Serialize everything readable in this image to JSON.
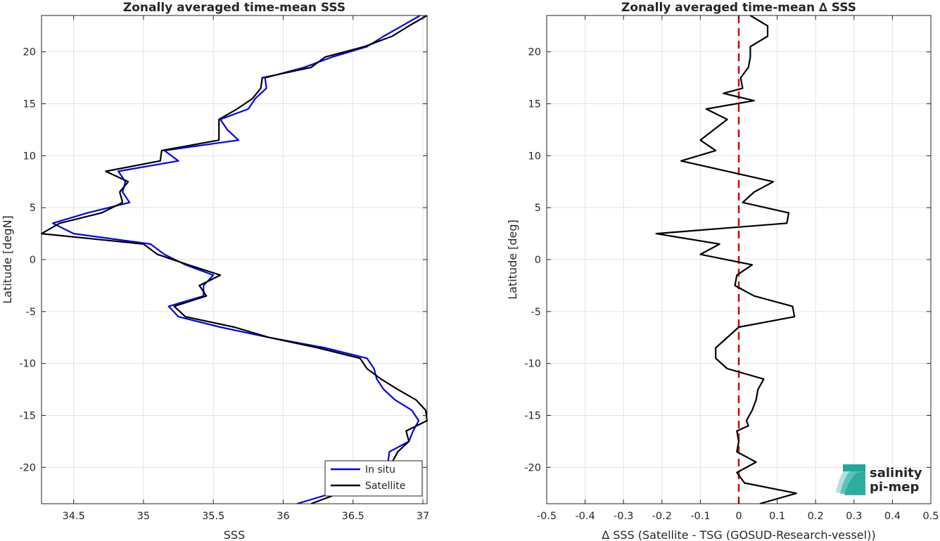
{
  "chart_data": [
    {
      "type": "line",
      "title": "Zonally averaged time-mean SSS",
      "xlabel": "SSS",
      "ylabel": "Latitude [degN]",
      "xlim": [
        34.27,
        37.03
      ],
      "ylim": [
        -23.5,
        23.5
      ],
      "xticks": [
        "34.5",
        "35",
        "35.5",
        "36",
        "36.5",
        "37"
      ],
      "yticks": [
        "20",
        "15",
        "10",
        "5",
        "0",
        "-5",
        "-10",
        "-15",
        "-20"
      ],
      "grid": true,
      "legend_position": "bottom-right",
      "series": [
        {
          "name": "In situ",
          "color": "#0000ee",
          "points": [
            [
              36.98,
              23.5
            ],
            [
              36.85,
              22.5
            ],
            [
              36.72,
              21.5
            ],
            [
              36.6,
              20.5
            ],
            [
              36.35,
              19.5
            ],
            [
              36.15,
              18.5
            ],
            [
              35.87,
              17.5
            ],
            [
              35.88,
              16.5
            ],
            [
              35.8,
              15.5
            ],
            [
              35.75,
              14.5
            ],
            [
              35.55,
              13.5
            ],
            [
              35.6,
              12.5
            ],
            [
              35.68,
              11.5
            ],
            [
              35.15,
              10.5
            ],
            [
              35.25,
              9.5
            ],
            [
              34.82,
              8.5
            ],
            [
              34.87,
              7.5
            ],
            [
              34.85,
              6.5
            ],
            [
              34.9,
              5.5
            ],
            [
              34.6,
              4.5
            ],
            [
              34.35,
              3.5
            ],
            [
              34.5,
              2.5
            ],
            [
              35.05,
              1.5
            ],
            [
              35.15,
              0.5
            ],
            [
              35.3,
              -0.5
            ],
            [
              35.5,
              -1.5
            ],
            [
              35.43,
              -2.5
            ],
            [
              35.43,
              -3.5
            ],
            [
              35.18,
              -4.5
            ],
            [
              35.25,
              -5.5
            ],
            [
              35.55,
              -6.5
            ],
            [
              35.9,
              -7.5
            ],
            [
              36.3,
              -8.5
            ],
            [
              36.6,
              -9.5
            ],
            [
              36.65,
              -10.5
            ],
            [
              36.67,
              -11.5
            ],
            [
              36.72,
              -12.5
            ],
            [
              36.8,
              -13.5
            ],
            [
              36.92,
              -14.5
            ],
            [
              36.97,
              -15.5
            ],
            [
              36.93,
              -16.5
            ],
            [
              36.9,
              -17.5
            ],
            [
              36.76,
              -18.5
            ],
            [
              36.75,
              -19.5
            ],
            [
              36.7,
              -20.5
            ],
            [
              36.6,
              -21.5
            ],
            [
              36.35,
              -22.5
            ],
            [
              36.1,
              -23.5
            ]
          ]
        },
        {
          "name": "Satellite",
          "color": "#000000",
          "points": [
            [
              37.03,
              23.5
            ],
            [
              36.9,
              22.5
            ],
            [
              36.78,
              21.5
            ],
            [
              36.58,
              20.5
            ],
            [
              36.3,
              19.5
            ],
            [
              36.2,
              18.5
            ],
            [
              35.85,
              17.5
            ],
            [
              35.84,
              16.5
            ],
            [
              35.78,
              15.5
            ],
            [
              35.67,
              14.5
            ],
            [
              35.54,
              13.5
            ],
            [
              35.54,
              12.5
            ],
            [
              35.54,
              11.5
            ],
            [
              35.13,
              10.5
            ],
            [
              35.12,
              9.5
            ],
            [
              34.73,
              8.5
            ],
            [
              34.89,
              7.5
            ],
            [
              34.83,
              6.5
            ],
            [
              34.85,
              5.5
            ],
            [
              34.7,
              4.5
            ],
            [
              34.4,
              3.5
            ],
            [
              34.27,
              2.5
            ],
            [
              35.0,
              1.5
            ],
            [
              35.1,
              0.5
            ],
            [
              35.32,
              -0.5
            ],
            [
              35.55,
              -1.5
            ],
            [
              35.4,
              -2.5
            ],
            [
              35.45,
              -3.5
            ],
            [
              35.22,
              -4.5
            ],
            [
              35.3,
              -5.5
            ],
            [
              35.65,
              -6.5
            ],
            [
              35.9,
              -7.5
            ],
            [
              36.25,
              -8.5
            ],
            [
              36.55,
              -9.5
            ],
            [
              36.6,
              -10.5
            ],
            [
              36.7,
              -11.5
            ],
            [
              36.82,
              -12.5
            ],
            [
              36.95,
              -13.5
            ],
            [
              37.02,
              -14.5
            ],
            [
              37.03,
              -15.5
            ],
            [
              36.88,
              -16.5
            ],
            [
              36.9,
              -17.5
            ],
            [
              36.82,
              -18.5
            ],
            [
              36.78,
              -19.5
            ],
            [
              36.74,
              -20.5
            ],
            [
              36.6,
              -21.5
            ],
            [
              36.4,
              -22.5
            ],
            [
              36.2,
              -23.5
            ]
          ]
        }
      ]
    },
    {
      "type": "line",
      "title": "Zonally averaged time-mean ∆ SSS",
      "xlabel": "∆ SSS (Satellite - TSG (GOSUD-Research-vessel))",
      "ylabel": "Latitude [deg]",
      "xlim": [
        -0.5,
        0.5
      ],
      "ylim": [
        -23.5,
        23.5
      ],
      "xticks": [
        "-0.5",
        "-0.4",
        "-0.3",
        "-0.2",
        "-0.1",
        "0",
        "0.1",
        "0.2",
        "0.3",
        "0.4",
        "0.5"
      ],
      "yticks": [
        "20",
        "15",
        "10",
        "5",
        "0",
        "-5",
        "-10",
        "-15",
        "-20"
      ],
      "grid": true,
      "reference_line": {
        "x": 0,
        "color": "#dd0000",
        "style": "dashed"
      },
      "series": [
        {
          "color": "#000000",
          "points": [
            [
              0.03,
              23.5
            ],
            [
              0.075,
              22.5
            ],
            [
              0.075,
              21.5
            ],
            [
              0.03,
              20.5
            ],
            [
              0.03,
              19.5
            ],
            [
              0.025,
              18.5
            ],
            [
              0.005,
              17.5
            ],
            [
              0.01,
              16.5
            ],
            [
              -0.04,
              16.0
            ],
            [
              0.04,
              15.3
            ],
            [
              -0.085,
              14.5
            ],
            [
              -0.03,
              13.5
            ],
            [
              -0.1,
              11.5
            ],
            [
              -0.06,
              10.5
            ],
            [
              -0.15,
              9.5
            ],
            [
              0.09,
              7.5
            ],
            [
              0.04,
              6.5
            ],
            [
              0.01,
              5.5
            ],
            [
              0.13,
              4.5
            ],
            [
              0.125,
              3.5
            ],
            [
              -0.215,
              2.5
            ],
            [
              -0.05,
              1.5
            ],
            [
              -0.1,
              0.5
            ],
            [
              0.035,
              -0.5
            ],
            [
              -0.005,
              -1.5
            ],
            [
              -0.01,
              -2.5
            ],
            [
              0.04,
              -3.5
            ],
            [
              0.14,
              -4.5
            ],
            [
              0.145,
              -5.5
            ],
            [
              0.0,
              -6.5
            ],
            [
              -0.06,
              -8.5
            ],
            [
              -0.06,
              -9.5
            ],
            [
              -0.03,
              -10.5
            ],
            [
              0.065,
              -11.5
            ],
            [
              0.05,
              -12.5
            ],
            [
              0.045,
              -13.5
            ],
            [
              0.035,
              -14.5
            ],
            [
              0.02,
              -15.5
            ],
            [
              0.025,
              -16.0
            ],
            [
              -0.005,
              -16.5
            ],
            [
              0.0,
              -17.5
            ],
            [
              -0.005,
              -18.5
            ],
            [
              0.045,
              -19.5
            ],
            [
              -0.005,
              -20.5
            ],
            [
              0.015,
              -21.5
            ],
            [
              0.15,
              -22.5
            ],
            [
              0.055,
              -23.5
            ]
          ]
        }
      ]
    }
  ],
  "logo": {
    "line1": "salinity",
    "line2": "pi-mep",
    "color": "#1fa898"
  }
}
